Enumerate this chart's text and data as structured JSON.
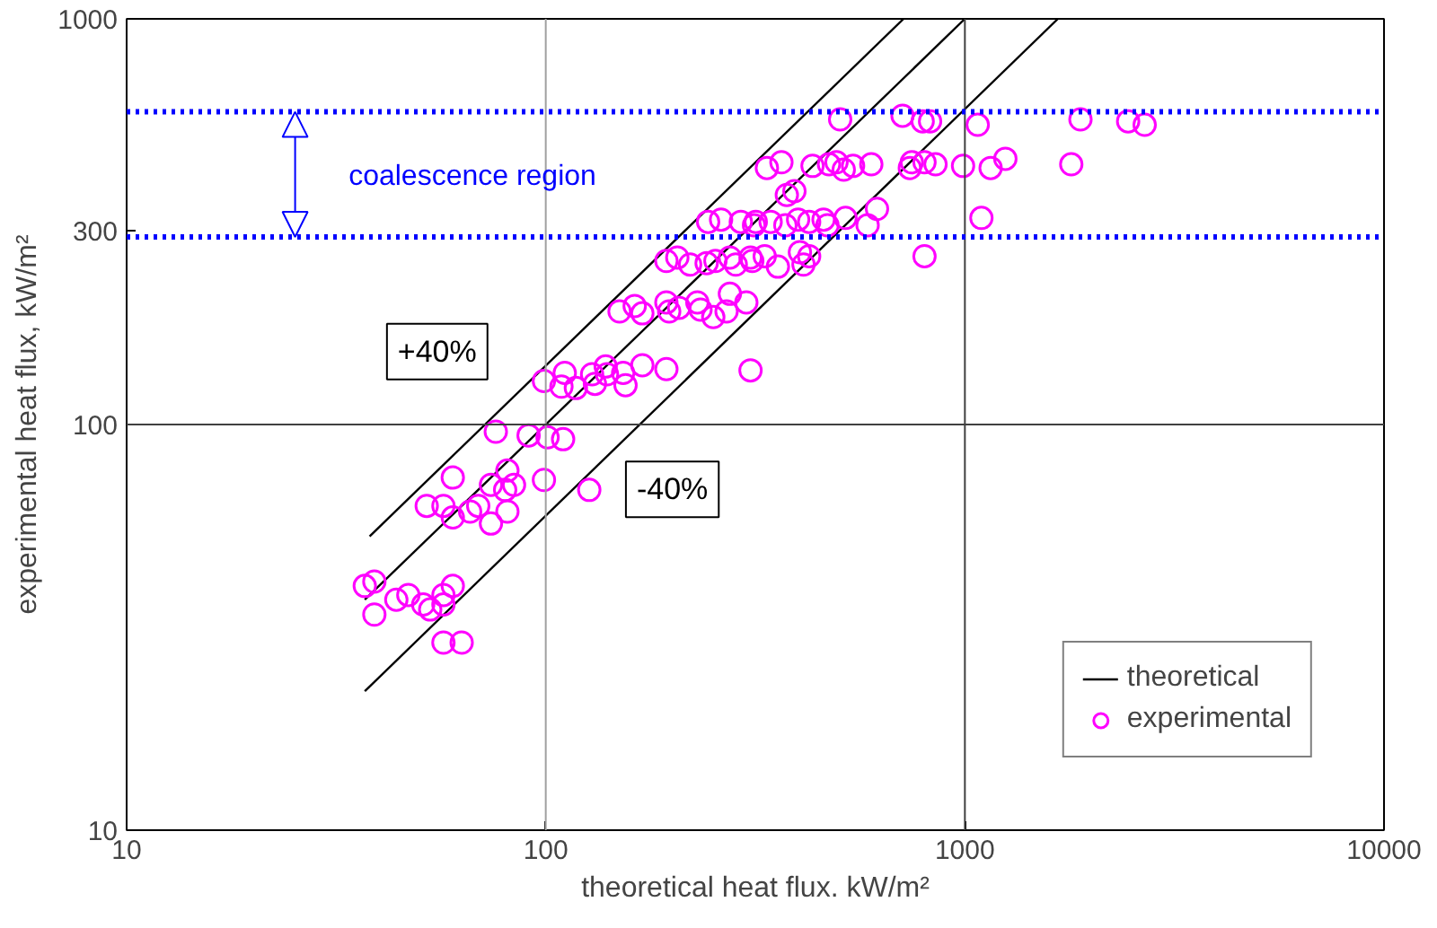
{
  "chart_data": {
    "type": "scatter",
    "xlabel": "theoretical heat flux. kW/m²",
    "ylabel": "experimental heat flux, kW/m²",
    "log": "xy",
    "xlim": [
      10,
      10000
    ],
    "ylim": [
      10,
      1000
    ],
    "xticks": [
      10,
      100,
      1000,
      10000
    ],
    "yticks": [
      10,
      100,
      300,
      1000
    ],
    "grid": false,
    "legend": "bottom right",
    "ref_lines": [
      {
        "axis": "x",
        "value": 100,
        "color": "#a0a0a0",
        "line_style": "solid"
      },
      {
        "axis": "x",
        "value": 1000,
        "color": "#404040",
        "line_style": "solid"
      },
      {
        "axis": "y",
        "value": 100,
        "color": "#404040",
        "line_style": "solid"
      },
      {
        "axis": "y",
        "value": 590,
        "color": "#0000ff",
        "line_style": "dotted"
      },
      {
        "axis": "y",
        "value": 290,
        "color": "#0000ff",
        "line_style": "dotted"
      }
    ],
    "annotations": [
      "coalescence region",
      "+40%",
      "-40%"
    ],
    "series": [
      {
        "name": "theoretical",
        "type": "line",
        "marker": "none",
        "color": "#000000",
        "line_style": "solid",
        "x": [
          37,
          1000
        ],
        "values": [
          37,
          1000
        ]
      },
      {
        "type": "line",
        "marker": "none",
        "color": "#000000",
        "line_style": "solid",
        "x": [
          38,
          714
        ],
        "values": [
          53,
          1000
        ]
      },
      {
        "type": "line",
        "marker": "none",
        "color": "#000000",
        "line_style": "solid",
        "x": [
          37,
          1667
        ],
        "values": [
          22,
          1000
        ]
      },
      {
        "name": "experimental",
        "marker": "circle",
        "color": "#ff00ff",
        "x": [
          76,
          91,
          101,
          110,
          60,
          81,
          74,
          80,
          84,
          99,
          127,
          52,
          57,
          60,
          66,
          69,
          74,
          81,
          39,
          37,
          39,
          44,
          47,
          51,
          53,
          57,
          60,
          57,
          57,
          63,
          99,
          111,
          109,
          118,
          129,
          131,
          139,
          140,
          153,
          155,
          170,
          194,
          308,
          150,
          163,
          170,
          194,
          197,
          208,
          230,
          234,
          251,
          270,
          275,
          301,
          194,
          206,
          221,
          242,
          254,
          275,
          284,
          308,
          311,
          333,
          358,
          404,
          412,
          425,
          244,
          262,
          292,
          314,
          317,
          344,
          373,
          400,
          425,
          460,
          470,
          519,
          376,
          392,
          504,
          710,
          793,
          826,
          1073,
          1887,
          2452,
          2685,
          337,
          365,
          433,
          474,
          494,
          514,
          541,
          598,
          739,
          747,
          801,
          851,
          990,
          1152,
          1249,
          1794,
          586,
          617,
          1095,
          801
        ],
        "values": [
          96,
          94,
          93,
          92,
          74,
          77,
          71,
          69,
          71,
          73,
          69,
          63,
          63,
          59,
          61,
          63,
          57,
          61,
          41,
          40,
          34,
          37,
          38,
          36,
          35,
          36,
          40,
          38,
          29,
          29,
          128,
          134,
          124,
          123,
          133,
          126,
          139,
          133,
          134,
          125,
          140,
          137,
          136,
          190,
          196,
          188,
          200,
          190,
          194,
          200,
          192,
          184,
          190,
          210,
          200,
          253,
          258,
          248,
          250,
          253,
          258,
          248,
          258,
          253,
          260,
          245,
          266,
          248,
          260,
          316,
          320,
          316,
          310,
          316,
          316,
          310,
          320,
          316,
          320,
          310,
          323,
          368,
          376,
          565,
          577,
          559,
          559,
          548,
          565,
          559,
          548,
          429,
          443,
          434,
          438,
          443,
          425,
          434,
          438,
          429,
          443,
          443,
          438,
          434,
          429,
          452,
          438,
          310,
          340,
          323,
          260
        ]
      }
    ]
  }
}
